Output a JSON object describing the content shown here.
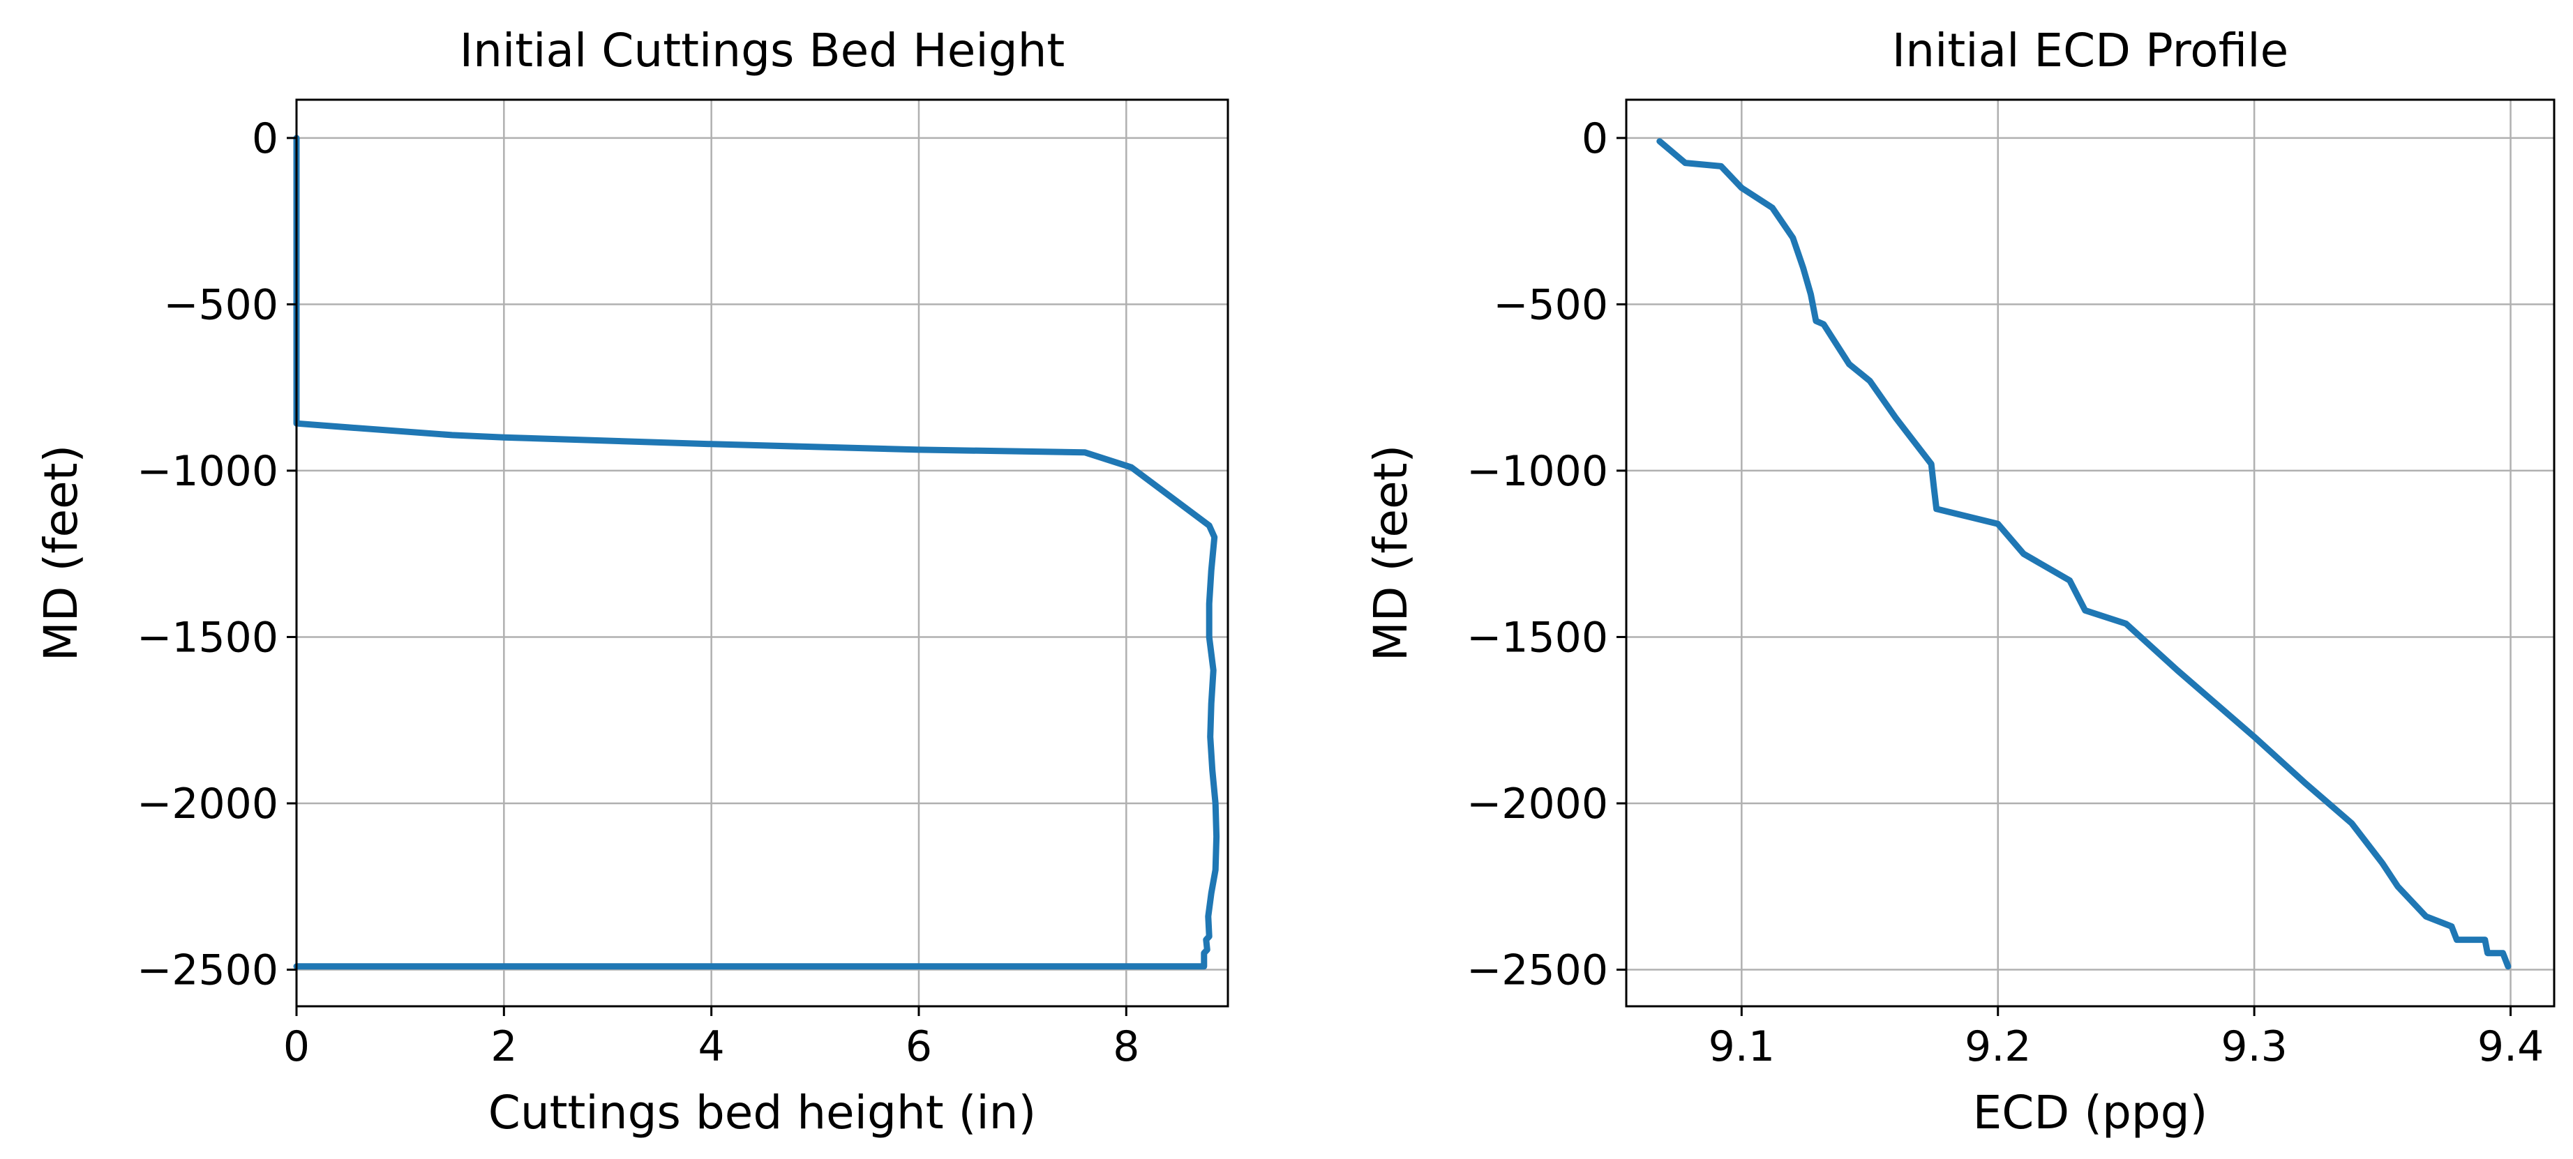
{
  "colors": {
    "series": "#1f77b4",
    "grid": "#b0b0b0",
    "frame": "#000000"
  },
  "chart_data": [
    {
      "type": "line",
      "title": "Initial Cuttings Bed Height",
      "xlabel": "Cuttings bed height (in)",
      "ylabel": "MD (feet)",
      "xlim": [
        0,
        8.98
      ],
      "ylim": [
        -2610,
        115
      ],
      "xticks": [
        0,
        2,
        4,
        6,
        8
      ],
      "yticks": [
        0,
        -500,
        -1000,
        -1500,
        -2000,
        -2500
      ],
      "xtick_labels": [
        "0",
        "2",
        "4",
        "6",
        "8"
      ],
      "ytick_labels": [
        "0",
        "−500",
        "−1000",
        "−1500",
        "−2000",
        "−2500"
      ],
      "grid": true,
      "series": [
        {
          "x": [
            0,
            0,
            0,
            0.5,
            1.5,
            2.0,
            4.0,
            6.0,
            7.6,
            8.05,
            8.8,
            8.85,
            8.82,
            8.8,
            8.8,
            8.82,
            8.84,
            8.82,
            8.81,
            8.83,
            8.86,
            8.87,
            8.86,
            8.82,
            8.79,
            8.8,
            8.77,
            8.78,
            8.75,
            8.75,
            0
          ],
          "y": [
            0,
            -500,
            -858,
            -870,
            -893,
            -900,
            -920,
            -937,
            -945,
            -990,
            -1165,
            -1200,
            -1300,
            -1400,
            -1500,
            -1550,
            -1600,
            -1700,
            -1800,
            -1900,
            -2000,
            -2100,
            -2200,
            -2270,
            -2340,
            -2400,
            -2410,
            -2440,
            -2450,
            -2490,
            -2490
          ]
        }
      ]
    },
    {
      "type": "line",
      "title": "Initial ECD Profile",
      "xlabel": "ECD (ppg)",
      "ylabel": "MD (feet)",
      "xlim": [
        9.055,
        9.417
      ],
      "ylim": [
        -2610,
        115
      ],
      "xticks": [
        9.1,
        9.2,
        9.3,
        9.4
      ],
      "yticks": [
        0,
        -500,
        -1000,
        -1500,
        -2000,
        -2500
      ],
      "xtick_labels": [
        "9.1",
        "9.2",
        "9.3",
        "9.4"
      ],
      "ytick_labels": [
        "0",
        "−500",
        "−1000",
        "−1500",
        "−2000",
        "−2500"
      ],
      "grid": true,
      "series": [
        {
          "x": [
            9.068,
            9.078,
            9.092,
            9.1,
            9.112,
            9.12,
            9.124,
            9.127,
            9.129,
            9.132,
            9.142,
            9.15,
            9.16,
            9.166,
            9.174,
            9.175,
            9.176,
            9.2,
            9.21,
            9.228,
            9.234,
            9.25,
            9.27,
            9.3,
            9.32,
            9.338,
            9.35,
            9.356,
            9.367,
            9.377,
            9.379,
            9.39,
            9.391,
            9.397,
            9.399
          ],
          "y": [
            -10,
            -75,
            -85,
            -150,
            -210,
            -300,
            -390,
            -470,
            -550,
            -560,
            -680,
            -730,
            -840,
            -900,
            -980,
            -1050,
            -1115,
            -1160,
            -1250,
            -1330,
            -1420,
            -1460,
            -1600,
            -1800,
            -1940,
            -2060,
            -2180,
            -2250,
            -2340,
            -2370,
            -2410,
            -2410,
            -2450,
            -2450,
            -2490
          ]
        }
      ]
    }
  ]
}
